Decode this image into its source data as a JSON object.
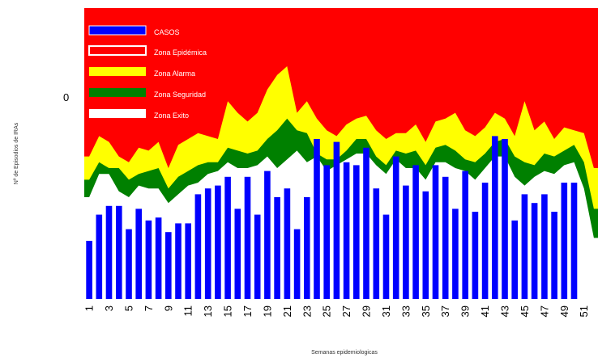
{
  "colors": {
    "epidemic": "#ff0000",
    "alarm": "#ffff00",
    "security": "#008000",
    "success": "#ffffff",
    "cases": "#0000ff"
  },
  "chart_data": {
    "type": "bar",
    "xlabel": "Semanas epidemiologicas",
    "ylabel": "Nº de Episodios de IRAs",
    "y_tick_labels": [
      "0"
    ],
    "x_tick_labels": [
      "1",
      "3",
      "5",
      "7",
      "9",
      "11",
      "13",
      "15",
      "17",
      "19",
      "21",
      "23",
      "25",
      "27",
      "29",
      "31",
      "33",
      "35",
      "37",
      "39",
      "41",
      "43",
      "45",
      "47",
      "49",
      "51"
    ],
    "legend": [
      {
        "key": "cases",
        "label": "CASOS"
      },
      {
        "key": "epidemic",
        "label": "Zona Epidémica"
      },
      {
        "key": "alarm",
        "label": "Zona Alarma"
      },
      {
        "key": "security",
        "label": "Zona Seguridad"
      },
      {
        "key": "success",
        "label": "Zona Exito"
      }
    ],
    "ylim": [
      0,
      100
    ],
    "weeks": [
      1,
      2,
      3,
      4,
      5,
      6,
      7,
      8,
      9,
      10,
      11,
      12,
      13,
      14,
      15,
      16,
      17,
      18,
      19,
      20,
      21,
      22,
      23,
      24,
      25,
      26,
      27,
      28,
      29,
      30,
      31,
      32,
      33,
      34,
      35,
      36,
      37,
      38,
      39,
      40,
      41,
      42,
      43,
      44,
      45,
      46,
      47,
      48,
      49,
      50,
      51,
      52
    ],
    "cases": [
      20,
      29,
      32,
      32,
      24,
      31,
      27,
      28,
      23,
      26,
      26,
      36,
      38,
      39,
      42,
      31,
      42,
      29,
      44,
      35,
      38,
      24,
      35,
      55,
      46,
      54,
      47,
      46,
      52,
      38,
      29,
      49,
      39,
      46,
      37,
      46,
      42,
      31,
      44,
      30,
      40,
      56,
      55,
      27,
      36,
      33,
      36,
      30,
      40,
      40,
      0,
      0
    ],
    "success_upper": [
      35,
      43,
      43,
      37,
      35,
      39,
      38,
      38,
      33,
      36,
      39,
      40,
      43,
      44,
      47,
      45,
      45,
      46,
      49,
      45,
      48,
      51,
      47,
      49,
      44,
      46,
      48,
      50,
      50,
      46,
      43,
      48,
      45,
      45,
      41,
      47,
      47,
      45,
      44,
      41,
      45,
      49,
      49,
      42,
      39,
      42,
      44,
      43,
      46,
      47,
      38,
      21
    ],
    "security_upper": [
      41,
      47,
      45,
      45,
      41,
      43,
      44,
      45,
      38,
      42,
      44,
      46,
      47,
      47,
      52,
      51,
      50,
      51,
      55,
      58,
      62,
      58,
      57,
      50,
      48,
      48,
      51,
      55,
      55,
      49,
      46,
      51,
      50,
      51,
      46,
      52,
      53,
      51,
      48,
      47,
      50,
      54,
      55,
      49,
      47,
      46,
      50,
      49,
      51,
      53,
      47,
      31
    ],
    "alarm_upper": [
      49,
      56,
      54,
      49,
      47,
      52,
      51,
      54,
      45,
      53,
      55,
      57,
      56,
      55,
      68,
      64,
      61,
      64,
      72,
      77,
      80,
      64,
      68,
      62,
      58,
      56,
      60,
      62,
      63,
      58,
      55,
      57,
      57,
      60,
      54,
      61,
      62,
      64,
      58,
      56,
      59,
      64,
      62,
      56,
      68,
      58,
      61,
      55,
      59,
      58,
      57,
      45
    ]
  }
}
